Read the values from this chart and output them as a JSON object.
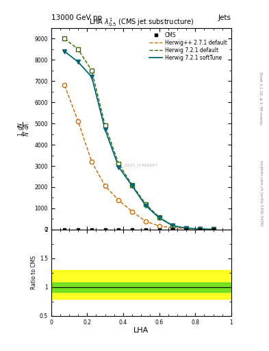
{
  "title": "13000 GeV pp",
  "title_right": "Jets",
  "plot_title": "LHA $\\lambda^{1}_{0.5}$ (CMS jet substructure)",
  "xlabel": "LHA",
  "watermark": "CMS_2021_I1920187",
  "right_label_top": "Rivet 3.1.10, ≥ 2.7M events",
  "right_label_bot": "mcplots.cern.ch [arXiv:1306.3436]",
  "cms_x": [
    0.075,
    0.15,
    0.225,
    0.3,
    0.375,
    0.45,
    0.525,
    0.6,
    0.675,
    0.75,
    0.825,
    0.9
  ],
  "cms_y": [
    0,
    0,
    0,
    0,
    0,
    0,
    0,
    0,
    0,
    0,
    0,
    0
  ],
  "herwig_pp_x": [
    0.075,
    0.15,
    0.225,
    0.3,
    0.375,
    0.45,
    0.525,
    0.6,
    0.675,
    0.75,
    0.825,
    0.9
  ],
  "herwig_pp_y": [
    6800,
    5100,
    3200,
    2050,
    1380,
    850,
    380,
    170,
    90,
    40,
    20,
    8
  ],
  "herwig721_x": [
    0.075,
    0.15,
    0.225,
    0.3,
    0.375,
    0.45,
    0.525,
    0.6,
    0.675,
    0.75,
    0.825,
    0.9
  ],
  "herwig721_y": [
    9000,
    8500,
    7500,
    4900,
    3100,
    2100,
    1200,
    580,
    190,
    70,
    25,
    12
  ],
  "herwig721st_x": [
    0.075,
    0.15,
    0.225,
    0.3,
    0.375,
    0.45,
    0.525,
    0.6,
    0.675,
    0.75,
    0.825,
    0.9
  ],
  "herwig721st_y": [
    8400,
    7900,
    7200,
    4700,
    2950,
    2050,
    1130,
    550,
    180,
    65,
    22,
    10
  ],
  "color_cms": "#000000",
  "color_herwig_pp": "#cc6600",
  "color_herwig721": "#336600",
  "color_herwig721st": "#006677",
  "ylim_main": [
    0,
    9500
  ],
  "ylim_ratio": [
    0.5,
    2.0
  ],
  "xlim": [
    0.0,
    1.0
  ],
  "yticks_main": [
    0,
    1000,
    2000,
    3000,
    4000,
    5000,
    6000,
    7000,
    8000,
    9000
  ],
  "ytick_labels_main": [
    "0",
    "1000",
    "2000",
    "3000",
    "4000",
    "5000",
    "6000",
    "7000",
    "8000",
    "9000"
  ],
  "legend_labels": [
    "CMS",
    "Herwig++ 2.7.1 default",
    "Herwig 7.2.1 default",
    "Herwig 7.2.1 softTune"
  ]
}
